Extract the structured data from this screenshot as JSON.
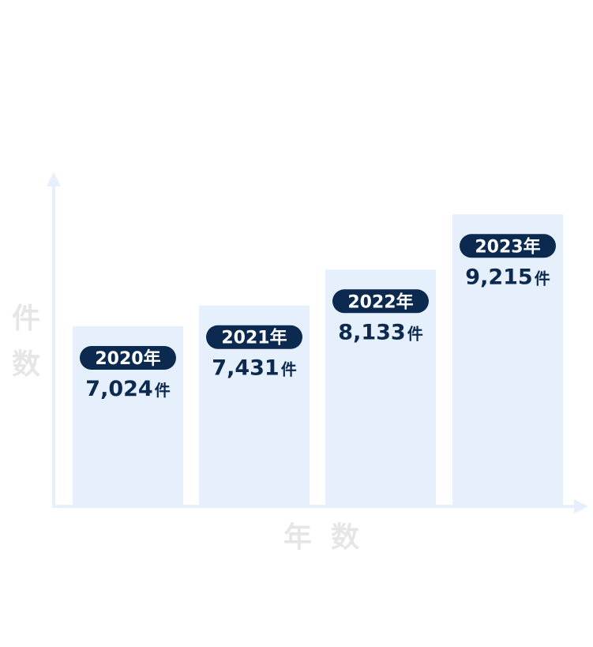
{
  "chart_data": {
    "type": "bar",
    "categories": [
      "2020年",
      "2021年",
      "2022年",
      "2023年"
    ],
    "values": [
      7024,
      7431,
      8133,
      9215
    ],
    "data_labels": [
      "7,024",
      "7,431",
      "8,133",
      "9,215"
    ],
    "value_unit": "件",
    "ylabel": "件数",
    "xlabel": "年数",
    "ylim": [
      3500,
      9900
    ],
    "grid": false,
    "legend": "none"
  },
  "colors": {
    "bar": "#e6f0fc",
    "axis": "#e6f0fc",
    "badge": "#0c2a4f",
    "badge_text": "#ffffff",
    "value_text": "#0c2a4f",
    "axis_label": "#e6e6e6"
  }
}
